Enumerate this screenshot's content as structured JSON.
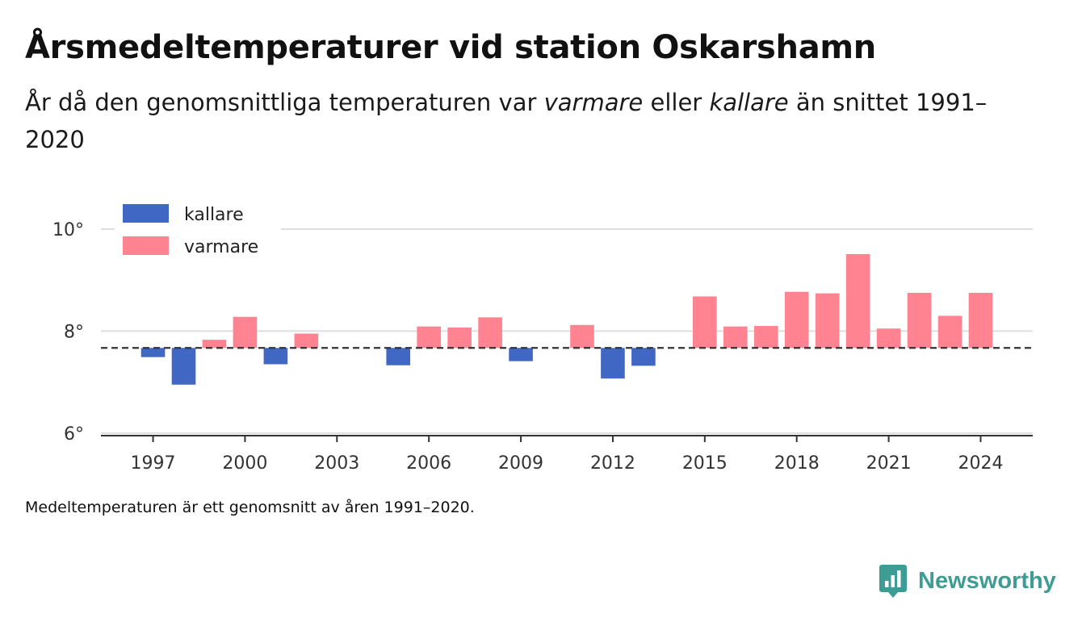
{
  "title_prefix": "Årsmedeltemperaturer vid station Oskarshamn",
  "subtitle": {
    "part1": "År då den genomsnittliga temperaturen var ",
    "em1": "varmare",
    "part2": " eller ",
    "em2": "kallare",
    "part3": " än snittet 1991–2020"
  },
  "footnote": "Medeltemperaturen är ett genomsnitt av åren 1991–2020.",
  "brand": {
    "name": "Newsworthy",
    "icon": "newsworthy-logo-icon",
    "color": "#3d9c93"
  },
  "colors": {
    "colder": "#4167c4",
    "warmer": "#ff8391",
    "reference_line": "#333333",
    "gridline": "#dedede",
    "axis": "#333333"
  },
  "chart_data": {
    "type": "bar",
    "title": "Årsmedeltemperaturer vid station Oskarshamn",
    "xlabel": "",
    "ylabel": "",
    "baseline": 7.67,
    "ylim": [
      5.95,
      10.3
    ],
    "xlim": [
      1995.3,
      2025.7
    ],
    "yticks": [
      6,
      8,
      10
    ],
    "ytick_suffix": "°",
    "xticks": [
      1997,
      2000,
      2003,
      2006,
      2009,
      2012,
      2015,
      2018,
      2021,
      2024
    ],
    "grid": true,
    "legend_position": "top-left",
    "legend": [
      {
        "key": "colder",
        "label": "kallare"
      },
      {
        "key": "warmer",
        "label": "varmare"
      }
    ],
    "categories": [
      1997,
      1998,
      1999,
      2000,
      2001,
      2002,
      2005,
      2006,
      2007,
      2008,
      2009,
      2011,
      2012,
      2013,
      2015,
      2016,
      2017,
      2018,
      2019,
      2020,
      2021,
      2022,
      2023,
      2024
    ],
    "values": [
      7.49,
      6.95,
      7.83,
      8.28,
      7.35,
      7.95,
      7.33,
      8.09,
      8.07,
      8.27,
      7.41,
      8.12,
      7.07,
      7.32,
      8.68,
      8.09,
      8.1,
      8.77,
      8.74,
      9.51,
      8.05,
      8.75,
      8.3,
      8.75
    ]
  }
}
